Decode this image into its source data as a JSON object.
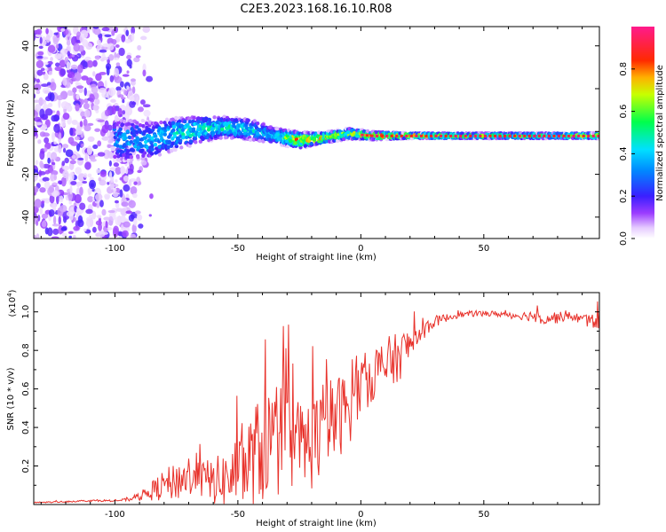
{
  "title": "C2E3.2023.168.16.10.R08",
  "colors": {
    "snr_line": "#e8322b",
    "frame": "#000000"
  },
  "chart_data": [
    {
      "type": "heatmap",
      "xlabel": "Height of straight line (km)",
      "ylabel": "Frequency (Hz)",
      "xlim": [
        -133,
        97
      ],
      "ylim": [
        -50,
        49
      ],
      "x_ticks": [
        -100,
        -50,
        0,
        50
      ],
      "x_tick_labels": [
        "-100",
        "-50",
        "0",
        "50"
      ],
      "y_ticks": [
        -40,
        -20,
        0,
        20,
        40
      ],
      "y_tick_labels": [
        "-40",
        "-20",
        "0",
        "20",
        "40"
      ],
      "colorbar": {
        "label": "Normalized spectral amplitude",
        "range": [
          0,
          1
        ],
        "ticks": [
          0,
          0.2,
          0.4,
          0.6,
          0.8
        ],
        "tick_labels": [
          "0.0",
          "0.2",
          "0.4",
          "0.6",
          "0.8"
        ],
        "colormap": "rainbow (white-purple-blue-cyan-green-yellow-red-magenta)"
      },
      "ridge": {
        "x": [
          -95,
          -85,
          -75,
          -65,
          -55,
          -45,
          -35,
          -25,
          -15,
          -5,
          5,
          20,
          40,
          60,
          80,
          95
        ],
        "frequency_center": [
          -4,
          -4,
          -1,
          1,
          2,
          1,
          -2,
          -4,
          -3,
          -1,
          -2,
          -2,
          -2,
          -2,
          -2,
          -2
        ],
        "frequency_halfwidth": [
          8,
          7,
          6,
          5,
          4,
          4,
          3,
          3,
          2,
          2,
          1.5,
          1,
          1,
          1,
          1,
          1
        ],
        "peak_amplitude": [
          0.4,
          0.45,
          0.5,
          0.55,
          0.55,
          0.5,
          0.45,
          0.9,
          0.8,
          0.7,
          0.9,
          0.9,
          0.7,
          0.7,
          0.7,
          0.8
        ]
      }
    },
    {
      "type": "line",
      "xlabel": "Height of straight line (km)",
      "ylabel": "SNR (10 * v/v)",
      "y_multiplier_label": "(x10",
      "y_multiplier_exponent": "4",
      "y_multiplier_close": ")",
      "xlim": [
        -133,
        97
      ],
      "ylim": [
        0,
        1.1
      ],
      "x_ticks": [
        -100,
        -50,
        0,
        50
      ],
      "x_tick_labels": [
        "-100",
        "-50",
        "0",
        "50"
      ],
      "y_ticks": [
        0.2,
        0.4,
        0.6,
        0.8,
        1.0
      ],
      "y_tick_labels": [
        "0.2",
        "0.4",
        "0.6",
        "0.8",
        "1.0"
      ],
      "series": [
        {
          "x": [
            -133,
            -120,
            -110,
            -100,
            -95,
            -90,
            -85,
            -80,
            -75,
            -70,
            -65,
            -60,
            -55,
            -50,
            -45,
            -40,
            -35,
            -30,
            -25,
            -20,
            -15,
            -10,
            -5,
            0,
            5,
            10,
            15,
            20,
            25,
            30,
            35,
            40,
            45,
            50,
            55,
            60,
            65,
            70,
            75,
            80,
            85,
            90,
            95,
            97
          ],
          "y": [
            0.01,
            0.015,
            0.02,
            0.02,
            0.025,
            0.04,
            0.07,
            0.1,
            0.12,
            0.15,
            0.13,
            0.12,
            0.13,
            0.17,
            0.22,
            0.3,
            0.32,
            0.35,
            0.3,
            0.32,
            0.4,
            0.45,
            0.5,
            0.62,
            0.68,
            0.72,
            0.76,
            0.83,
            0.9,
            0.95,
            0.97,
            0.985,
            0.99,
            0.99,
            0.99,
            0.985,
            0.98,
            0.98,
            0.97,
            0.97,
            0.98,
            0.96,
            0.95,
            0.96
          ],
          "noise": [
            0.003,
            0.004,
            0.005,
            0.005,
            0.008,
            0.02,
            0.05,
            0.08,
            0.1,
            0.12,
            0.1,
            0.12,
            0.15,
            0.2,
            0.25,
            0.3,
            0.3,
            0.28,
            0.25,
            0.25,
            0.25,
            0.22,
            0.2,
            0.15,
            0.15,
            0.15,
            0.13,
            0.1,
            0.05,
            0.03,
            0.02,
            0.015,
            0.015,
            0.015,
            0.015,
            0.02,
            0.02,
            0.03,
            0.04,
            0.03,
            0.02,
            0.03,
            0.04,
            0.05
          ]
        }
      ]
    }
  ]
}
